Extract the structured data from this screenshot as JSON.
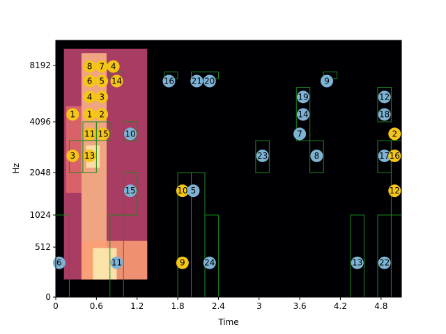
{
  "chart_data": {
    "type": "heatmap",
    "title": "",
    "xlabel": "Time",
    "ylabel": "Hz",
    "xlim": [
      0,
      5.1
    ],
    "x_ticks": [
      0,
      0.6,
      1.2,
      1.8,
      2.4,
      3,
      3.6,
      4.2,
      4.8
    ],
    "x_tick_labels": [
      "0",
      "0.6",
      "1.2",
      "1.8",
      "2.4",
      "3",
      "3.6",
      "4.2",
      "4.8"
    ],
    "y_scale": "mel",
    "ylim": [
      0,
      11025
    ],
    "y_ticks": [
      0,
      512,
      1024,
      2048,
      4096,
      8192
    ],
    "y_tick_labels": [
      "0",
      "512",
      "1024",
      "2048",
      "4096",
      "8192"
    ],
    "colormap": "magma",
    "marker_colors": {
      "yellow": "#f5c518",
      "blue": "#7fb3d5"
    },
    "box_color": "#1a8a1a",
    "energy_regions": [
      {
        "t0": 0.12,
        "t1": 1.35,
        "f0": 150,
        "f1": 10000,
        "intensity": 0.55
      },
      {
        "t0": 0.38,
        "t1": 0.75,
        "f0": 150,
        "f1": 9500,
        "intensity": 0.85
      },
      {
        "t0": 0.15,
        "t1": 0.38,
        "f0": 1500,
        "f1": 5000,
        "intensity": 0.65
      },
      {
        "t0": 0.45,
        "t1": 0.65,
        "f0": 2200,
        "f1": 3000,
        "intensity": 0.95
      },
      {
        "t0": 0.38,
        "t1": 1.35,
        "f0": 150,
        "f1": 600,
        "intensity": 0.8
      },
      {
        "t0": 0.55,
        "t1": 0.9,
        "f0": 150,
        "f1": 500,
        "intensity": 0.97
      }
    ],
    "boxes": [
      {
        "t0": 0.0,
        "t1": 0.2,
        "f0": 0,
        "f1": 1024
      },
      {
        "t0": 0.2,
        "t1": 0.4,
        "f0": 2048,
        "f1": 3200
      },
      {
        "t0": 0.4,
        "t1": 0.6,
        "f0": 2048,
        "f1": 3200
      },
      {
        "t0": 0.4,
        "t1": 0.6,
        "f0": 3200,
        "f1": 4096
      },
      {
        "t0": 0.6,
        "t1": 0.8,
        "f0": 3200,
        "f1": 4096
      },
      {
        "t0": 0.8,
        "t1": 1.0,
        "f0": 7000,
        "f1": 7600
      },
      {
        "t0": 0.8,
        "t1": 1.0,
        "f0": 0,
        "f1": 1024
      },
      {
        "t0": 1.0,
        "t1": 1.2,
        "f0": 3200,
        "f1": 4096
      },
      {
        "t0": 1.0,
        "t1": 1.2,
        "f0": 1024,
        "f1": 2048
      },
      {
        "t0": 1.6,
        "t1": 1.8,
        "f0": 7000,
        "f1": 7600
      },
      {
        "t0": 1.8,
        "t1": 2.0,
        "f0": 0,
        "f1": 2048
      },
      {
        "t0": 2.0,
        "t1": 2.2,
        "f0": 0,
        "f1": 2048
      },
      {
        "t0": 2.0,
        "t1": 2.4,
        "f0": 7000,
        "f1": 7600
      },
      {
        "t0": 2.2,
        "t1": 2.4,
        "f0": 0,
        "f1": 1024
      },
      {
        "t0": 2.95,
        "t1": 3.15,
        "f0": 2048,
        "f1": 3200
      },
      {
        "t0": 3.55,
        "t1": 3.75,
        "f0": 3200,
        "f1": 6300
      },
      {
        "t0": 3.75,
        "t1": 3.95,
        "f0": 2048,
        "f1": 3200
      },
      {
        "t0": 3.95,
        "t1": 4.15,
        "f0": 7000,
        "f1": 7600
      },
      {
        "t0": 4.35,
        "t1": 4.55,
        "f0": 0,
        "f1": 1024
      },
      {
        "t0": 4.75,
        "t1": 4.95,
        "f0": 0,
        "f1": 1024
      },
      {
        "t0": 4.75,
        "t1": 4.95,
        "f0": 2048,
        "f1": 3200
      },
      {
        "t0": 4.75,
        "t1": 4.95,
        "f0": 4096,
        "f1": 6300
      },
      {
        "t0": 4.95,
        "t1": 5.1,
        "f0": 1024,
        "f1": 3200
      }
    ],
    "markers": [
      {
        "label": "1",
        "t": 0.25,
        "f": 4500,
        "color": "yellow"
      },
      {
        "label": "2",
        "t": 0.68,
        "f": 4500,
        "color": "yellow"
      },
      {
        "label": "3",
        "t": 0.25,
        "f": 2600,
        "color": "yellow"
      },
      {
        "label": "3",
        "t": 0.68,
        "f": 5600,
        "color": "yellow"
      },
      {
        "label": "4",
        "t": 0.5,
        "f": 5600,
        "color": "yellow"
      },
      {
        "label": "4",
        "t": 0.85,
        "f": 8100,
        "color": "yellow"
      },
      {
        "label": "5",
        "t": 0.68,
        "f": 6800,
        "color": "yellow"
      },
      {
        "label": "6",
        "t": 0.5,
        "f": 6800,
        "color": "yellow"
      },
      {
        "label": "7",
        "t": 0.68,
        "f": 8100,
        "color": "yellow"
      },
      {
        "label": "8",
        "t": 0.5,
        "f": 8100,
        "color": "yellow"
      },
      {
        "label": "1",
        "t": 0.5,
        "f": 4500,
        "color": "yellow"
      },
      {
        "label": "11",
        "t": 0.5,
        "f": 3500,
        "color": "yellow"
      },
      {
        "label": "15",
        "t": 0.7,
        "f": 3500,
        "color": "yellow"
      },
      {
        "label": "13",
        "t": 0.5,
        "f": 2600,
        "color": "yellow"
      },
      {
        "label": "14",
        "t": 0.9,
        "f": 6800,
        "color": "yellow"
      },
      {
        "label": "6",
        "t": 0.05,
        "f": 320,
        "color": "blue"
      },
      {
        "label": "11",
        "t": 0.9,
        "f": 320,
        "color": "blue"
      },
      {
        "label": "10",
        "t": 1.1,
        "f": 3500,
        "color": "blue"
      },
      {
        "label": "15",
        "t": 1.1,
        "f": 1550,
        "color": "blue"
      },
      {
        "label": "16",
        "t": 1.67,
        "f": 6800,
        "color": "blue"
      },
      {
        "label": "10",
        "t": 1.87,
        "f": 1550,
        "color": "yellow"
      },
      {
        "label": "5",
        "t": 2.03,
        "f": 1550,
        "color": "blue"
      },
      {
        "label": "9",
        "t": 1.87,
        "f": 320,
        "color": "yellow"
      },
      {
        "label": "21",
        "t": 2.08,
        "f": 6800,
        "color": "blue"
      },
      {
        "label": "20",
        "t": 2.27,
        "f": 6800,
        "color": "blue"
      },
      {
        "label": "24",
        "t": 2.27,
        "f": 320,
        "color": "blue"
      },
      {
        "label": "23",
        "t": 3.05,
        "f": 2600,
        "color": "blue"
      },
      {
        "label": "19",
        "t": 3.65,
        "f": 5600,
        "color": "blue"
      },
      {
        "label": "14",
        "t": 3.65,
        "f": 4500,
        "color": "blue"
      },
      {
        "label": "7",
        "t": 3.6,
        "f": 3500,
        "color": "blue"
      },
      {
        "label": "8",
        "t": 3.85,
        "f": 2600,
        "color": "blue"
      },
      {
        "label": "9",
        "t": 4.0,
        "f": 6800,
        "color": "blue"
      },
      {
        "label": "13",
        "t": 4.45,
        "f": 320,
        "color": "blue"
      },
      {
        "label": "22",
        "t": 4.85,
        "f": 320,
        "color": "blue"
      },
      {
        "label": "12",
        "t": 4.85,
        "f": 5600,
        "color": "blue"
      },
      {
        "label": "18",
        "t": 4.85,
        "f": 4500,
        "color": "blue"
      },
      {
        "label": "17",
        "t": 4.85,
        "f": 2600,
        "color": "blue"
      },
      {
        "label": "2",
        "t": 5.0,
        "f": 3500,
        "color": "yellow"
      },
      {
        "label": "16",
        "t": 5.0,
        "f": 2600,
        "color": "yellow"
      },
      {
        "label": "12",
        "t": 5.0,
        "f": 1550,
        "color": "yellow"
      }
    ]
  }
}
